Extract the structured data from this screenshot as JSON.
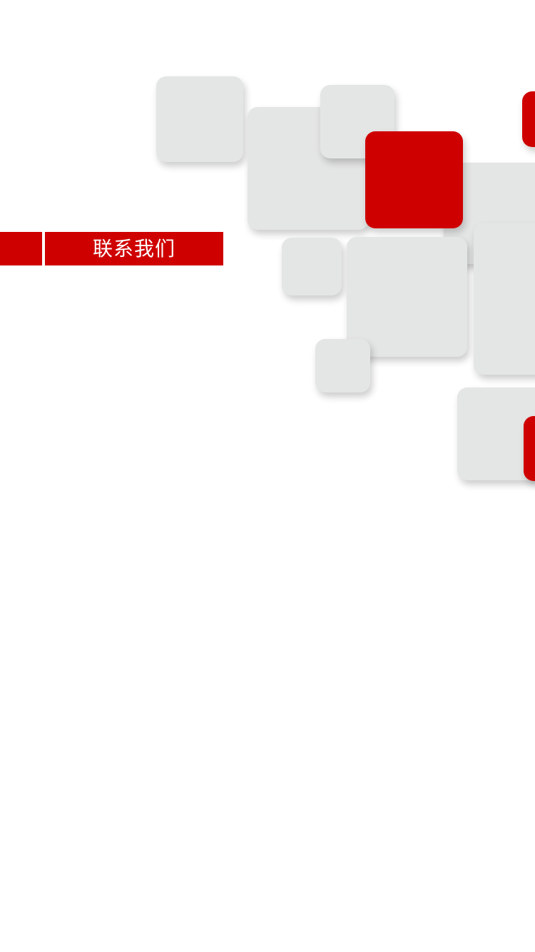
{
  "section": {
    "title": "联系我们"
  },
  "colors": {
    "accent": "#cf0000",
    "tile_gray": "#e4e5e5",
    "background": "#ffffff"
  }
}
